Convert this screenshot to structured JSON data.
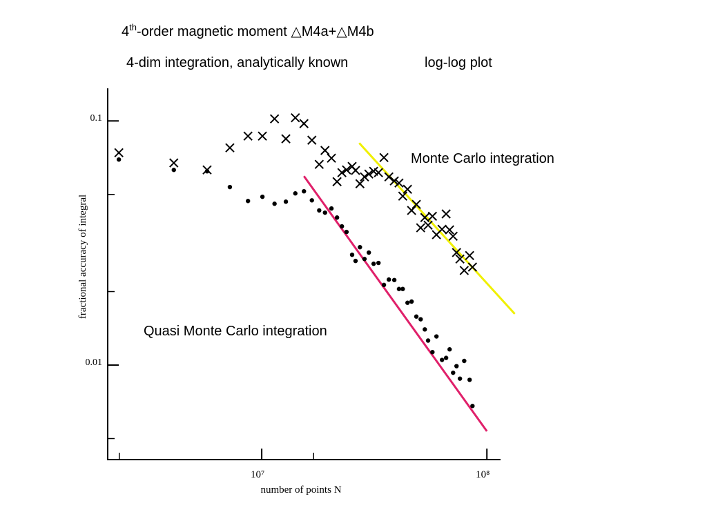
{
  "chart_data": {
    "type": "scatter",
    "title": [
      "4",
      "th",
      "-order magnetic moment △M4a+△M4b"
    ],
    "subtitle": "4-dim integration, analytically known",
    "note": "log-log plot",
    "x_label": "number of points N",
    "y_label": "fractional accuracy of integral",
    "xlog": true,
    "ylog": true,
    "xlim": [
      2070000,
      115000000
    ],
    "ylim": [
      0.0041,
      0.136
    ],
    "xticks": [
      {
        "value": 10000000,
        "label": "10⁷"
      },
      {
        "value": 100000000,
        "label": "10⁸"
      }
    ],
    "xminorticks": [
      2330000,
      17000000
    ],
    "yticks": [
      0.1,
      0.01
    ],
    "yminorticks": [
      0.05,
      0.02,
      0.005
    ],
    "x": [
      2320000,
      4070000,
      5720000,
      7220000,
      8690000,
      10070000,
      11400000,
      12800000,
      14100000,
      15400000,
      16700000,
      18000000,
      19100000,
      20400000,
      21600000,
      22700000,
      23800000,
      25200000,
      26100000,
      27300000,
      28600000,
      29900000,
      31400000,
      33000000,
      34900000,
      36700000,
      38800000,
      40700000,
      42300000,
      44400000,
      46300000,
      48600000,
      50800000,
      53000000,
      54800000,
      57300000,
      59700000,
      63200000,
      65900000,
      68300000,
      70800000,
      73300000,
      75900000,
      79300000,
      83800000,
      86300000
    ],
    "series": [
      {
        "name": "Monte Carlo integration",
        "marker": "cross",
        "color": "#000000",
        "values": [
          0.0741,
          0.0673,
          0.063,
          0.0776,
          0.0867,
          0.0867,
          0.102,
          0.0845,
          0.103,
          0.0975,
          0.0834,
          0.0664,
          0.0757,
          0.0704,
          0.0564,
          0.0614,
          0.063,
          0.0651,
          0.0627,
          0.0553,
          0.059,
          0.0606,
          0.0622,
          0.0614,
          0.0708,
          0.059,
          0.0568,
          0.0557,
          0.0492,
          0.0525,
          0.043,
          0.0455,
          0.0365,
          0.0402,
          0.0374,
          0.0407,
          0.0342,
          0.036,
          0.0416,
          0.0358,
          0.0337,
          0.0289,
          0.0272,
          0.0244,
          0.0281,
          0.0252
        ]
      },
      {
        "name": "Quasi Monte Carlo integration",
        "marker": "dot",
        "color": "#000000",
        "values": [
          0.0695,
          0.063,
          0.0622,
          0.0536,
          0.047,
          0.0489,
          0.0458,
          0.0467,
          0.0505,
          0.0515,
          0.0473,
          0.043,
          0.0421,
          0.0438,
          0.0402,
          0.037,
          0.0351,
          0.0283,
          0.0267,
          0.0304,
          0.0272,
          0.0289,
          0.026,
          0.0262,
          0.0213,
          0.0224,
          0.0223,
          0.0205,
          0.0205,
          0.018,
          0.0182,
          0.0158,
          0.0154,
          0.014,
          0.0126,
          0.0113,
          0.0131,
          0.0105,
          0.0107,
          0.0116,
          0.0093,
          0.0099,
          0.0088,
          0.0104,
          0.0087,
          0.0068
        ]
      }
    ],
    "fits": [
      {
        "color": "#f0f000",
        "x": [
          27100000,
          133000000
        ],
        "values": [
          0.0812,
          0.0162
        ]
      },
      {
        "color": "#e0206a",
        "x": [
          15400000,
          100000000
        ],
        "values": [
          0.0594,
          0.00536
        ]
      }
    ]
  }
}
